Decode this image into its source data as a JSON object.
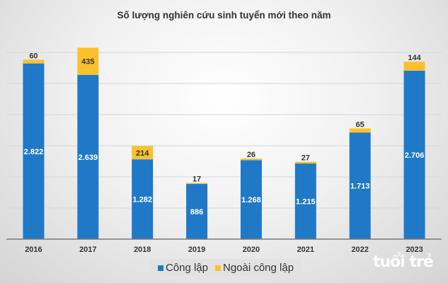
{
  "chart_data": {
    "type": "bar",
    "stacked": true,
    "title": "Số lượng nghiên cứu sinh tuyển mới theo năm",
    "categories": [
      "2016",
      "2017",
      "2018",
      "2019",
      "2020",
      "2021",
      "2022",
      "2023"
    ],
    "series": [
      {
        "name": "Công lập",
        "color": "#2079c7",
        "values": [
          2822,
          2639,
          1282,
          886,
          1268,
          1215,
          1713,
          2706
        ]
      },
      {
        "name": "Ngoài công lập",
        "color": "#fbc02d",
        "values": [
          60,
          435,
          214,
          17,
          26,
          27,
          65,
          144
        ]
      }
    ],
    "ylim": [
      0,
      3000
    ],
    "y_gridline_step": 500,
    "y_tick_labels_shown": false,
    "grid": true,
    "legend": "bottom",
    "number_format": "dot thousands separator"
  },
  "watermark": "tuổi trẻ online"
}
